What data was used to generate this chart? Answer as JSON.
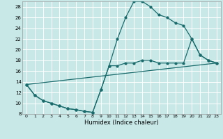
{
  "xlabel": "Humidex (Indice chaleur)",
  "bg_color": "#c8e8e8",
  "grid_color": "#ffffff",
  "line_color": "#1a6b6b",
  "xlim": [
    -0.5,
    23.5
  ],
  "ylim": [
    8,
    29
  ],
  "yticks": [
    8,
    10,
    12,
    14,
    16,
    18,
    20,
    22,
    24,
    26,
    28
  ],
  "xticks": [
    0,
    1,
    2,
    3,
    4,
    5,
    6,
    7,
    8,
    9,
    10,
    11,
    12,
    13,
    14,
    15,
    16,
    17,
    18,
    19,
    20,
    21,
    22,
    23
  ],
  "line1_x": [
    0,
    1,
    2,
    3,
    4,
    5,
    6,
    7,
    8,
    9,
    10,
    11,
    12,
    13,
    14,
    15,
    16,
    17,
    18,
    19,
    20,
    21,
    22,
    23
  ],
  "line1_y": [
    13.5,
    11.5,
    10.5,
    10.0,
    9.5,
    9.0,
    8.8,
    8.5,
    8.3,
    12.5,
    17.0,
    22.0,
    26.0,
    29.0,
    29.0,
    28.0,
    26.5,
    26.0,
    25.0,
    24.5,
    22.0,
    19.0,
    18.0,
    17.5
  ],
  "line2_x": [
    0,
    1,
    2,
    3,
    4,
    5,
    6,
    7,
    8,
    9,
    10,
    11,
    12,
    13,
    14,
    15,
    16,
    17,
    18,
    19,
    20,
    21,
    22,
    23
  ],
  "line2_y": [
    13.5,
    11.5,
    10.5,
    10.0,
    9.5,
    9.0,
    8.8,
    8.5,
    8.3,
    12.5,
    17.0,
    17.0,
    17.5,
    17.5,
    18.0,
    18.0,
    17.5,
    17.5,
    17.5,
    17.5,
    22.0,
    19.0,
    18.0,
    17.5
  ],
  "line3_x": [
    0,
    23
  ],
  "line3_y": [
    13.5,
    17.5
  ]
}
